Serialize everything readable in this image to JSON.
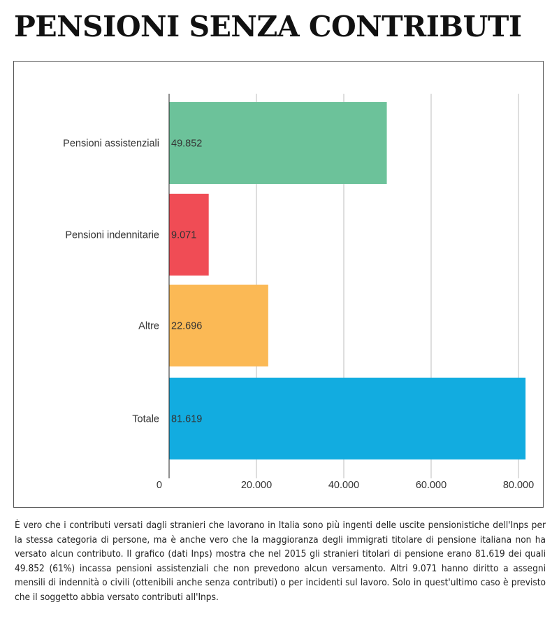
{
  "title": "PENSIONI SENZA CONTRIBUTI",
  "chart_data": {
    "type": "bar",
    "orientation": "horizontal",
    "categories": [
      "Pensioni assistenziali",
      "Pensioni indennitarie",
      "Altre",
      "Totale"
    ],
    "values": [
      49852,
      9071,
      22696,
      81619
    ],
    "value_labels": [
      "49.852",
      "9.071",
      "22.696",
      "81.619"
    ],
    "colors": [
      "#6cc29a",
      "#f04c55",
      "#fbb955",
      "#12ace0"
    ],
    "xlim": [
      0,
      82000
    ],
    "xticks": [
      0,
      20000,
      40000,
      60000,
      80000
    ],
    "xtick_labels": [
      "0",
      "20.000",
      "40.000",
      "60.000",
      "80.000"
    ],
    "grid": "vertical"
  },
  "caption": "È vero che i contributi versati dagli stranieri che lavorano in Italia sono più ingenti delle uscite pensionistiche dell'Inps per la stessa categoria di persone, ma è anche vero che la maggioranza degli immigrati titolare di pensione italiana non ha versato alcun contributo. Il grafico (dati Inps) mostra che nel 2015 gli stranieri titolari di pensione erano 81.619 dei quali 49.852 (61%) incassa pensioni assistenziali che non prevedono alcun versamento. Altri 9.071 hanno diritto a assegni mensili di indennità o civili (ottenibili anche senza contributi) o per incidenti sul lavoro. Solo in quest'ultimo caso è previsto che il soggetto abbia versato contributi all'Inps."
}
